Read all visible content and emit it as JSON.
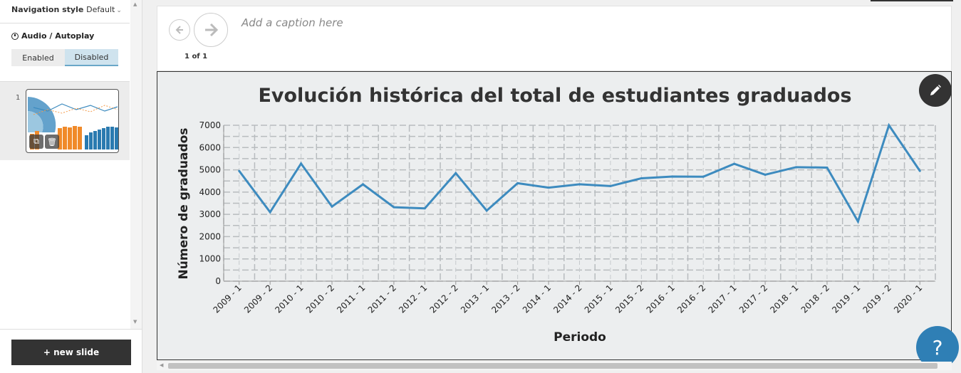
{
  "sidebar": {
    "nav_style_label": "Navigation style",
    "nav_style_value": "Default",
    "audio_title": "Audio / Autoplay",
    "toggle_enabled": "Enabled",
    "toggle_disabled": "Disabled",
    "slide_number": "1",
    "new_slide_label": "+ new slide"
  },
  "caption": {
    "placeholder": "Add a caption here",
    "counter": "1 of 1"
  },
  "help_label": "?",
  "colors": {
    "line": "#3d8bbf",
    "help": "#2f7fb5",
    "dark": "#333333"
  },
  "chart_data": {
    "type": "line",
    "title": "Evolución histórica del total de estudiantes graduados",
    "xlabel": "Periodo",
    "ylabel": "Número de graduados",
    "ylim": [
      0,
      7000
    ],
    "yticks": [
      0,
      1000,
      2000,
      3000,
      4000,
      5000,
      6000,
      7000
    ],
    "grid": true,
    "categories": [
      "2009 - 1",
      "2009 - 2",
      "2010 - 1",
      "2010 - 2",
      "2011 - 1",
      "2011 - 2",
      "2012 - 1",
      "2012 - 2",
      "2013 - 1",
      "2013 - 2",
      "2014 - 1",
      "2014 - 2",
      "2015 - 1",
      "2015 - 2",
      "2016 - 1",
      "2016 - 2",
      "2017 - 1",
      "2017 - 2",
      "2018 - 1",
      "2018 - 2",
      "2019 - 1",
      "2019 - 2",
      "2020 - 1"
    ],
    "values": [
      4950,
      3100,
      5280,
      3350,
      4350,
      3320,
      3270,
      4850,
      3170,
      4400,
      4200,
      4350,
      4270,
      4620,
      4700,
      4690,
      5270,
      4780,
      5120,
      5100,
      2680,
      7000,
      4950
    ]
  }
}
